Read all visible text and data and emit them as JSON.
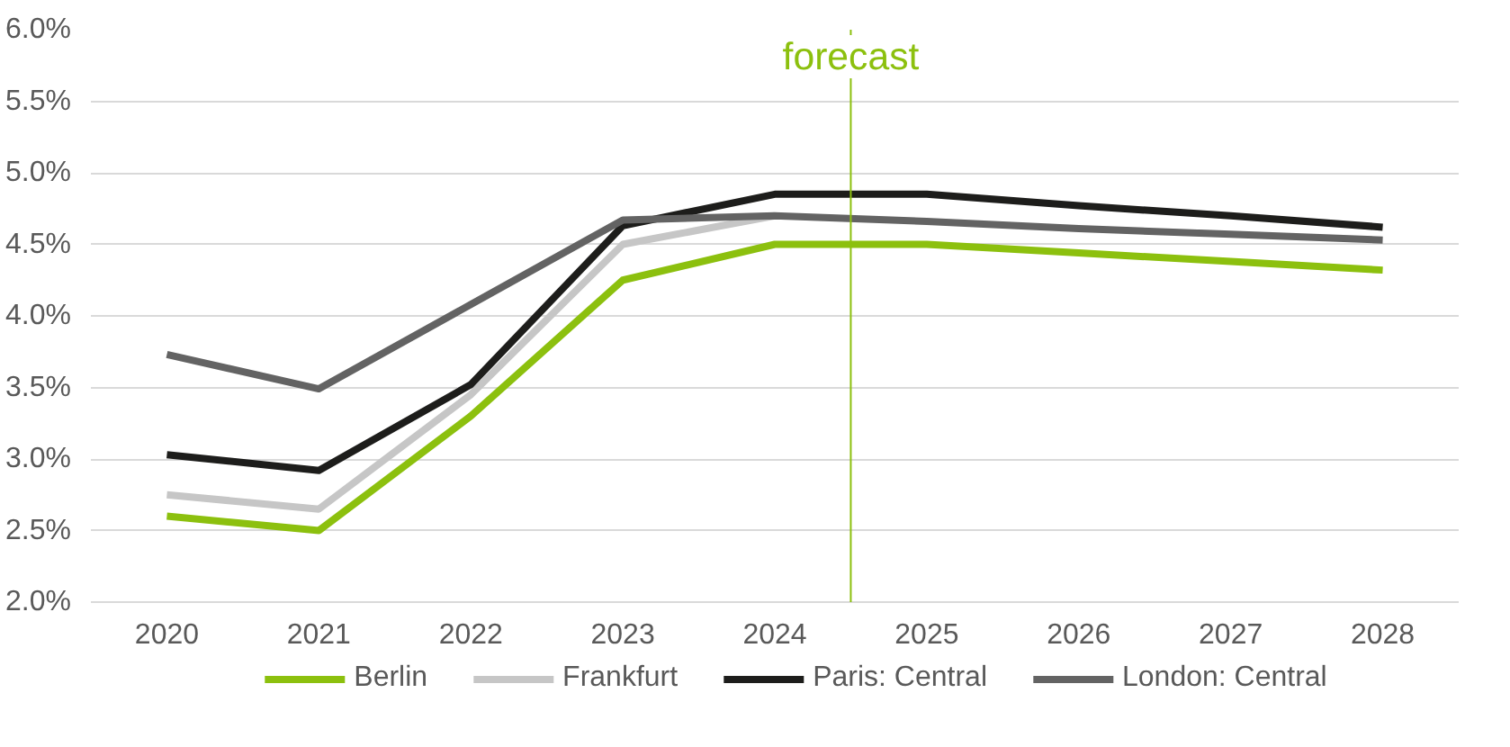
{
  "chart_data": {
    "type": "line",
    "x": [
      2020,
      2021,
      2022,
      2023,
      2024,
      2025,
      2026,
      2027,
      2028
    ],
    "xlim": [
      2019.5,
      2028.5
    ],
    "xticks": [
      2020,
      2021,
      2022,
      2023,
      2024,
      2025,
      2026,
      2027,
      2028
    ],
    "ylim": [
      2.0,
      6.0
    ],
    "yticks": [
      {
        "value": 2.0,
        "label": "2.0%"
      },
      {
        "value": 2.5,
        "label": "2.5%"
      },
      {
        "value": 3.0,
        "label": "3.0%"
      },
      {
        "value": 3.5,
        "label": "3.5%"
      },
      {
        "value": 4.0,
        "label": "4.0%"
      },
      {
        "value": 4.5,
        "label": "4.5%"
      },
      {
        "value": 5.0,
        "label": "5.0%"
      },
      {
        "value": 5.5,
        "label": "5.5%"
      },
      {
        "value": 6.0,
        "label": "6.0%"
      }
    ],
    "grid": "y",
    "legend": "bottom",
    "marker": "none",
    "line_style": "solid",
    "ref_lines": [
      {
        "axis": "x",
        "value": 2024.5,
        "label": "forecast",
        "color": "#8cc00e"
      }
    ],
    "series": [
      {
        "name": "Berlin",
        "color": "#8cc00e",
        "values": [
          2.6,
          2.5,
          3.3,
          4.25,
          4.5,
          4.5,
          4.44,
          4.38,
          4.32
        ]
      },
      {
        "name": "Frankfurt",
        "color": "#c6c6c6",
        "values": [
          2.75,
          2.65,
          3.45,
          4.5,
          4.7,
          null,
          null,
          null,
          null
        ]
      },
      {
        "name": "Paris: Central",
        "color": "#1d1d1b",
        "values": [
          3.03,
          2.92,
          3.52,
          4.63,
          4.85,
          4.85,
          4.77,
          4.7,
          4.62
        ]
      },
      {
        "name": "London: Central",
        "color": "#636363",
        "values": [
          3.73,
          3.49,
          4.08,
          4.67,
          4.7,
          4.66,
          4.61,
          4.57,
          4.53
        ]
      }
    ]
  }
}
